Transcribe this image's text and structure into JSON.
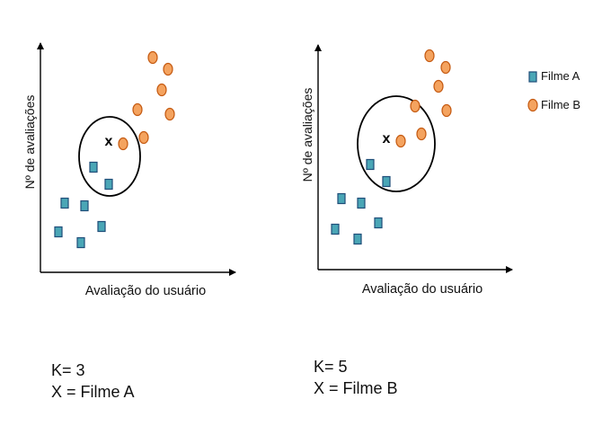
{
  "panels": [
    {
      "id": "k3",
      "ylabel": "Nº de avaliações",
      "xlabel": "Avaliação do usuário",
      "query_label": "x",
      "caption": {
        "k_text": "K= 3",
        "result_text": "X = Filme A"
      }
    },
    {
      "id": "k5",
      "ylabel": "Nº de avaliações",
      "xlabel": "Avaliação do usuário",
      "query_label": "x",
      "caption": {
        "k_text": "K= 5",
        "result_text": "X = Filme B"
      }
    }
  ],
  "legend": [
    {
      "label": "Filme A",
      "marker": "square",
      "color": "#4aa6b6"
    },
    {
      "label": "Filme B",
      "marker": "circle",
      "color": "#f4a35f"
    }
  ],
  "colors": {
    "filme_a_fill": "#4aa6b6",
    "filme_a_stroke": "#1f4e79",
    "filme_b_fill": "#f4a35f",
    "filme_b_stroke": "#c55a11",
    "axis": "#000000"
  }
}
